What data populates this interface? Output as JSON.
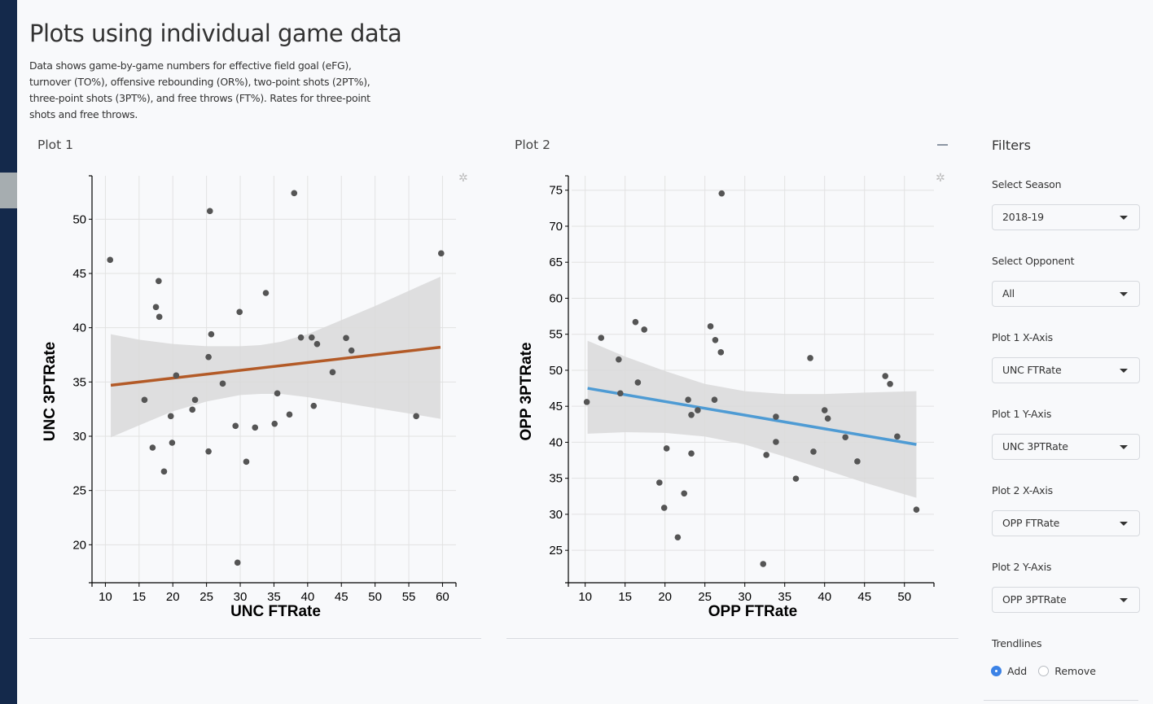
{
  "page": {
    "title": "Plots using individual game data",
    "description": "Data shows game-by-game numbers for effective field goal (eFG), turnover (TO%), offensive rebounding (OR%), two-point shots (2PT%), three-point shots (3PT%), and free throws (FT%). Rates for three-point shots and free throws."
  },
  "panels": {
    "plot1_title": "Plot 1",
    "plot2_title": "Plot 2",
    "collapse_icon": "minus-icon",
    "settings_icon": "gear-icon"
  },
  "filters": {
    "title": "Filters",
    "season": {
      "label": "Select Season",
      "value": "2018-19"
    },
    "opponent": {
      "label": "Select Opponent",
      "value": "All"
    },
    "plot1_x": {
      "label": "Plot 1 X-Axis",
      "value": "UNC FTRate"
    },
    "plot1_y": {
      "label": "Plot 1 Y-Axis",
      "value": "UNC 3PTRate"
    },
    "plot2_x": {
      "label": "Plot 2 X-Axis",
      "value": "OPP FTRate"
    },
    "plot2_y": {
      "label": "Plot 2 Y-Axis",
      "value": "OPP 3PTRate"
    },
    "trendlines": {
      "label": "Trendlines",
      "options": [
        "Add",
        "Remove"
      ],
      "selected": "Add"
    }
  },
  "colors": {
    "plot1_trend": "#b35a27",
    "plot2_trend": "#4e9bd4",
    "points": "#555555",
    "ci_band": "#d9d9d9",
    "radio_accent": "#3b82e6"
  },
  "chart_data": [
    {
      "type": "scatter",
      "title": "Plot 1",
      "xlabel": "UNC FTRate",
      "ylabel": "UNC 3PTRate",
      "xlim": [
        8.5,
        62
      ],
      "ylim": [
        16.5,
        54
      ],
      "xticks": [
        10,
        15,
        20,
        25,
        30,
        35,
        40,
        45,
        50,
        55,
        60
      ],
      "yticks": [
        20,
        25,
        30,
        35,
        40,
        45,
        50
      ],
      "grid": true,
      "points": [
        [
          10.7,
          46.25
        ],
        [
          25.5,
          50.75
        ],
        [
          38.0,
          52.4
        ],
        [
          59.8,
          46.85
        ],
        [
          17.9,
          44.3
        ],
        [
          17.5,
          41.9
        ],
        [
          18.0,
          41.0
        ],
        [
          29.9,
          41.45
        ],
        [
          33.8,
          43.2
        ],
        [
          25.7,
          39.4
        ],
        [
          25.3,
          37.3
        ],
        [
          39.0,
          39.1
        ],
        [
          40.6,
          39.1
        ],
        [
          41.4,
          38.5
        ],
        [
          45.7,
          39.05
        ],
        [
          46.5,
          37.9
        ],
        [
          43.7,
          35.9
        ],
        [
          20.5,
          35.6
        ],
        [
          27.4,
          34.85
        ],
        [
          15.8,
          33.35
        ],
        [
          23.3,
          33.35
        ],
        [
          22.9,
          32.45
        ],
        [
          35.5,
          33.95
        ],
        [
          37.3,
          32.0
        ],
        [
          40.9,
          32.8
        ],
        [
          19.7,
          31.85
        ],
        [
          56.1,
          31.85
        ],
        [
          29.3,
          30.95
        ],
        [
          32.2,
          30.8
        ],
        [
          35.1,
          31.15
        ],
        [
          17.0,
          28.95
        ],
        [
          19.9,
          29.4
        ],
        [
          25.3,
          28.6
        ],
        [
          30.9,
          27.65
        ],
        [
          18.7,
          26.75
        ],
        [
          29.6,
          18.35
        ]
      ],
      "trendline": {
        "x": [
          10.8,
          59.7
        ],
        "y": [
          34.7,
          38.2
        ]
      },
      "ci_band": {
        "x": [
          10.8,
          15,
          20,
          25,
          30,
          33,
          36,
          40,
          45,
          50,
          55,
          59.7
        ],
        "lower": [
          29.9,
          31.0,
          32.3,
          33.2,
          33.8,
          33.9,
          33.9,
          33.6,
          33.1,
          32.6,
          32.1,
          31.6
        ],
        "upper": [
          39.4,
          38.9,
          38.5,
          38.3,
          38.3,
          38.4,
          38.7,
          39.4,
          40.7,
          42.0,
          43.4,
          44.7
        ]
      }
    },
    {
      "type": "scatter",
      "title": "Plot 2",
      "xlabel": "OPP FTRate",
      "ylabel": "OPP 3PTRate",
      "xlim": [
        8.3,
        53.7
      ],
      "ylim": [
        20.5,
        77
      ],
      "xticks": [
        10,
        15,
        20,
        25,
        30,
        35,
        40,
        45,
        50
      ],
      "yticks": [
        25,
        30,
        35,
        40,
        45,
        50,
        55,
        60,
        65,
        70,
        75
      ],
      "grid": true,
      "points": [
        [
          27.1,
          74.55
        ],
        [
          16.3,
          56.7
        ],
        [
          17.4,
          55.65
        ],
        [
          25.7,
          56.1
        ],
        [
          26.3,
          54.2
        ],
        [
          27.0,
          52.5
        ],
        [
          12.0,
          54.5
        ],
        [
          14.2,
          51.5
        ],
        [
          38.2,
          51.7
        ],
        [
          47.6,
          49.2
        ],
        [
          48.2,
          48.1
        ],
        [
          16.6,
          48.3
        ],
        [
          14.4,
          46.8
        ],
        [
          10.2,
          45.6
        ],
        [
          22.9,
          45.9
        ],
        [
          26.2,
          45.9
        ],
        [
          24.1,
          44.45
        ],
        [
          23.3,
          43.8
        ],
        [
          33.9,
          43.55
        ],
        [
          40.0,
          44.45
        ],
        [
          40.4,
          43.3
        ],
        [
          42.6,
          40.7
        ],
        [
          49.1,
          40.8
        ],
        [
          33.9,
          40.05
        ],
        [
          20.2,
          39.15
        ],
        [
          23.3,
          38.45
        ],
        [
          32.7,
          38.25
        ],
        [
          38.6,
          38.7
        ],
        [
          44.1,
          37.35
        ],
        [
          36.4,
          34.95
        ],
        [
          19.3,
          34.4
        ],
        [
          22.4,
          32.9
        ],
        [
          19.9,
          30.9
        ],
        [
          51.5,
          30.65
        ],
        [
          21.6,
          26.8
        ],
        [
          32.3,
          23.1
        ]
      ],
      "trendline": {
        "x": [
          10.3,
          51.5
        ],
        "y": [
          47.5,
          39.7
        ]
      },
      "ci_band": {
        "x": [
          10.3,
          15,
          20,
          25,
          30,
          35,
          40,
          45,
          51.5
        ],
        "lower": [
          41.2,
          41.4,
          41.3,
          40.8,
          39.7,
          38.0,
          36.2,
          34.4,
          32.3
        ],
        "upper": [
          54.1,
          51.9,
          49.9,
          48.1,
          47.1,
          46.7,
          46.7,
          46.9,
          47.1
        ]
      }
    }
  ]
}
